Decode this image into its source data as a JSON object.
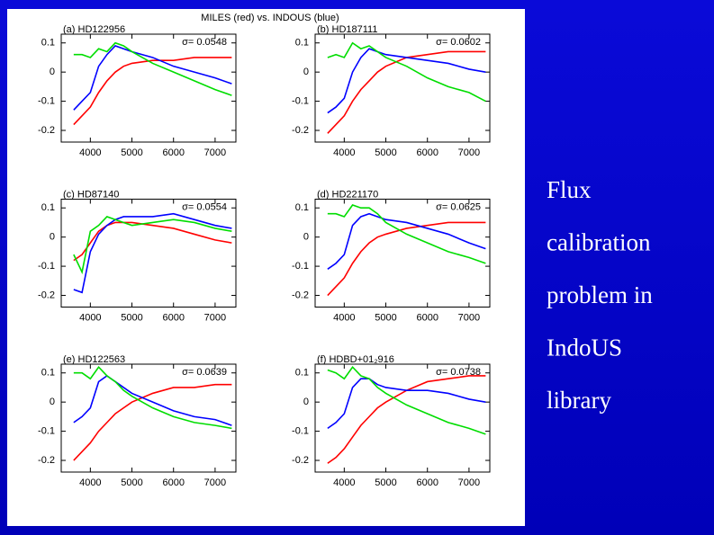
{
  "figure_title": "MILES (red) vs. INDOUS (blue)",
  "slide": {
    "caption_lines": [
      "Flux",
      "calibration",
      "problem in",
      "IndoUS",
      "library"
    ]
  },
  "chart_data": [
    {
      "type": "line",
      "title": "(a) HD122956",
      "annotation": "σ= 0.0548",
      "x": [
        3600,
        3800,
        4000,
        4200,
        4400,
        4600,
        4800,
        5000,
        5500,
        6000,
        6500,
        7000,
        7400
      ],
      "series": [
        {
          "color": "#ff0000",
          "values": [
            -0.18,
            -0.15,
            -0.12,
            -0.07,
            -0.03,
            0,
            0.02,
            0.03,
            0.04,
            0.04,
            0.05,
            0.05,
            0.05
          ]
        },
        {
          "color": "#0000ff",
          "values": [
            -0.13,
            -0.1,
            -0.07,
            0.02,
            0.06,
            0.09,
            0.08,
            0.07,
            0.05,
            0.02,
            0,
            -0.02,
            -0.04
          ]
        },
        {
          "color": "#00dd00",
          "values": [
            0.06,
            0.06,
            0.05,
            0.08,
            0.07,
            0.1,
            0.09,
            0.07,
            0.03,
            0,
            -0.03,
            -0.06,
            -0.08
          ]
        }
      ],
      "xlim": [
        3300,
        7500
      ],
      "ylim": [
        -0.24,
        0.13
      ],
      "xticks": [
        4000,
        5000,
        6000,
        7000
      ],
      "yticks": [
        -0.2,
        -0.1,
        0,
        0.1
      ]
    },
    {
      "type": "line",
      "title": "(b) HD187111",
      "annotation": "σ= 0.0602",
      "x": [
        3600,
        3800,
        4000,
        4200,
        4400,
        4600,
        4800,
        5000,
        5500,
        6000,
        6500,
        7000,
        7400
      ],
      "series": [
        {
          "color": "#ff0000",
          "values": [
            -0.21,
            -0.18,
            -0.15,
            -0.1,
            -0.06,
            -0.03,
            0,
            0.02,
            0.05,
            0.06,
            0.07,
            0.07,
            0.07
          ]
        },
        {
          "color": "#0000ff",
          "values": [
            -0.14,
            -0.12,
            -0.09,
            0,
            0.05,
            0.08,
            0.07,
            0.06,
            0.05,
            0.04,
            0.03,
            0.01,
            0
          ]
        },
        {
          "color": "#00dd00",
          "values": [
            0.05,
            0.06,
            0.05,
            0.1,
            0.08,
            0.09,
            0.07,
            0.05,
            0.02,
            -0.02,
            -0.05,
            -0.07,
            -0.1
          ]
        }
      ],
      "xlim": [
        3300,
        7500
      ],
      "ylim": [
        -0.24,
        0.13
      ],
      "xticks": [
        4000,
        5000,
        6000,
        7000
      ],
      "yticks": [
        -0.2,
        -0.1,
        0,
        0.1
      ]
    },
    {
      "type": "line",
      "title": "(c) HD87140",
      "annotation": "σ= 0.0554",
      "x": [
        3600,
        3800,
        4000,
        4200,
        4400,
        4600,
        4800,
        5000,
        5500,
        6000,
        6500,
        7000,
        7400
      ],
      "series": [
        {
          "color": "#ff0000",
          "values": [
            -0.08,
            -0.06,
            -0.02,
            0.02,
            0.04,
            0.05,
            0.05,
            0.05,
            0.04,
            0.03,
            0.01,
            -0.01,
            -0.02
          ]
        },
        {
          "color": "#0000ff",
          "values": [
            -0.18,
            -0.19,
            -0.05,
            0.01,
            0.04,
            0.06,
            0.07,
            0.07,
            0.07,
            0.08,
            0.06,
            0.04,
            0.03
          ]
        },
        {
          "color": "#00dd00",
          "values": [
            -0.06,
            -0.12,
            0.02,
            0.04,
            0.07,
            0.06,
            0.05,
            0.04,
            0.05,
            0.06,
            0.05,
            0.03,
            0.02
          ]
        }
      ],
      "xlim": [
        3300,
        7500
      ],
      "ylim": [
        -0.24,
        0.13
      ],
      "xticks": [
        4000,
        5000,
        6000,
        7000
      ],
      "yticks": [
        -0.2,
        -0.1,
        0,
        0.1
      ]
    },
    {
      "type": "line",
      "title": "(d) HD221170",
      "annotation": "σ= 0.0625",
      "x": [
        3600,
        3800,
        4000,
        4200,
        4400,
        4600,
        4800,
        5000,
        5500,
        6000,
        6500,
        7000,
        7400
      ],
      "series": [
        {
          "color": "#ff0000",
          "values": [
            -0.2,
            -0.17,
            -0.14,
            -0.09,
            -0.05,
            -0.02,
            0,
            0.01,
            0.03,
            0.04,
            0.05,
            0.05,
            0.05
          ]
        },
        {
          "color": "#0000ff",
          "values": [
            -0.11,
            -0.09,
            -0.06,
            0.04,
            0.07,
            0.08,
            0.07,
            0.06,
            0.05,
            0.03,
            0.01,
            -0.02,
            -0.04
          ]
        },
        {
          "color": "#00dd00",
          "values": [
            0.08,
            0.08,
            0.07,
            0.11,
            0.1,
            0.1,
            0.08,
            0.05,
            0.01,
            -0.02,
            -0.05,
            -0.07,
            -0.09
          ]
        }
      ],
      "xlim": [
        3300,
        7500
      ],
      "ylim": [
        -0.24,
        0.13
      ],
      "xticks": [
        4000,
        5000,
        6000,
        7000
      ],
      "yticks": [
        -0.2,
        -0.1,
        0,
        0.1
      ]
    },
    {
      "type": "line",
      "title": "(e) HD122563",
      "annotation": "σ= 0.0639",
      "x": [
        3600,
        3800,
        4000,
        4200,
        4400,
        4600,
        4800,
        5000,
        5500,
        6000,
        6500,
        7000,
        7400
      ],
      "series": [
        {
          "color": "#ff0000",
          "values": [
            -0.2,
            -0.17,
            -0.14,
            -0.1,
            -0.07,
            -0.04,
            -0.02,
            0,
            0.03,
            0.05,
            0.05,
            0.06,
            0.06
          ]
        },
        {
          "color": "#0000ff",
          "values": [
            -0.07,
            -0.05,
            -0.02,
            0.07,
            0.09,
            0.07,
            0.05,
            0.03,
            0,
            -0.03,
            -0.05,
            -0.06,
            -0.08
          ]
        },
        {
          "color": "#00dd00",
          "values": [
            0.1,
            0.1,
            0.08,
            0.12,
            0.09,
            0.07,
            0.04,
            0.02,
            -0.02,
            -0.05,
            -0.07,
            -0.08,
            -0.09
          ]
        }
      ],
      "xlim": [
        3300,
        7500
      ],
      "ylim": [
        -0.24,
        0.13
      ],
      "xticks": [
        4000,
        5000,
        6000,
        7000
      ],
      "yticks": [
        -0.2,
        -0.1,
        0,
        0.1
      ]
    },
    {
      "type": "line",
      "title": "(f) HDBD+01₂916",
      "annotation": "σ= 0.0738",
      "x": [
        3600,
        3800,
        4000,
        4200,
        4400,
        4600,
        4800,
        5000,
        5500,
        6000,
        6500,
        7000,
        7400
      ],
      "series": [
        {
          "color": "#ff0000",
          "values": [
            -0.21,
            -0.19,
            -0.16,
            -0.12,
            -0.08,
            -0.05,
            -0.02,
            0,
            0.04,
            0.07,
            0.08,
            0.09,
            0.09
          ]
        },
        {
          "color": "#0000ff",
          "values": [
            -0.09,
            -0.07,
            -0.04,
            0.05,
            0.08,
            0.08,
            0.06,
            0.05,
            0.04,
            0.04,
            0.03,
            0.01,
            0
          ]
        },
        {
          "color": "#00dd00",
          "values": [
            0.11,
            0.1,
            0.08,
            0.12,
            0.09,
            0.08,
            0.05,
            0.03,
            -0.01,
            -0.04,
            -0.07,
            -0.09,
            -0.11
          ]
        }
      ],
      "xlim": [
        3300,
        7500
      ],
      "ylim": [
        -0.24,
        0.13
      ],
      "xticks": [
        4000,
        5000,
        6000,
        7000
      ],
      "yticks": [
        -0.2,
        -0.1,
        0,
        0.1
      ]
    }
  ]
}
